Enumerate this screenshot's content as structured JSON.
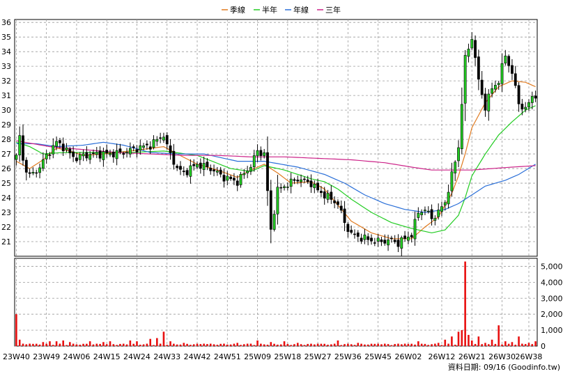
{
  "chart_data": {
    "type": "candlestick",
    "legend": {
      "placement": "top-center",
      "items": [
        {
          "name": "季線",
          "color": "#e07a1f"
        },
        {
          "name": "半年",
          "color": "#22cc22"
        },
        {
          "name": "年線",
          "color": "#2a6fd8"
        },
        {
          "name": "三年",
          "color": "#cc2288"
        }
      ]
    },
    "colors": {
      "up": "#22cc22",
      "down": "#000000",
      "volume": "#e81010",
      "grid": "#999999"
    },
    "grid": true,
    "price_axis": {
      "position": "left",
      "ylim": [
        20,
        36.2
      ],
      "ticks": [
        "21",
        "22",
        "23",
        "24",
        "25",
        "26",
        "27",
        "28",
        "29",
        "30",
        "31",
        "32",
        "33",
        "34",
        "35",
        "36"
      ]
    },
    "volume_axis": {
      "position": "right",
      "ylim": [
        0,
        5500
      ],
      "ticks": [
        "0",
        "1,000",
        "2,000",
        "3,000",
        "4,000",
        "5,000"
      ]
    },
    "x_labels": [
      "23W40",
      "23W49",
      "24W06",
      "24W15",
      "24W24",
      "24W33",
      "24W42",
      "24W51",
      "25W09",
      "25W18",
      "25W27",
      "25W36",
      "25W45",
      "26W02",
      "26W12",
      "26W21",
      "26W30",
      "26W38"
    ],
    "x_label_index": [
      0,
      9,
      18,
      27,
      36,
      45,
      54,
      63,
      72,
      81,
      90,
      99,
      108,
      117,
      127,
      136,
      145,
      153
    ],
    "price_anchors": [
      [
        0,
        26.8
      ],
      [
        1,
        28.2
      ],
      [
        2,
        26.5
      ],
      [
        4,
        25.5
      ],
      [
        6,
        25.8
      ],
      [
        8,
        26.5
      ],
      [
        10,
        27.2
      ],
      [
        12,
        27.8
      ],
      [
        14,
        27.5
      ],
      [
        16,
        27.0
      ],
      [
        18,
        26.7
      ],
      [
        20,
        26.9
      ],
      [
        24,
        27.0
      ],
      [
        28,
        27.0
      ],
      [
        32,
        27.1
      ],
      [
        36,
        27.4
      ],
      [
        40,
        27.6
      ],
      [
        44,
        28.3
      ],
      [
        45,
        27.5
      ],
      [
        48,
        26.0
      ],
      [
        50,
        25.7
      ],
      [
        54,
        26.3
      ],
      [
        58,
        26.0
      ],
      [
        62,
        25.4
      ],
      [
        66,
        25.1
      ],
      [
        70,
        26.2
      ],
      [
        72,
        27.2
      ],
      [
        74,
        27.0
      ],
      [
        76,
        21.8
      ],
      [
        78,
        24.5
      ],
      [
        80,
        24.8
      ],
      [
        84,
        25.3
      ],
      [
        88,
        25.0
      ],
      [
        90,
        24.5
      ],
      [
        92,
        24.2
      ],
      [
        96,
        23.6
      ],
      [
        98,
        22.3
      ],
      [
        100,
        21.5
      ],
      [
        104,
        21.2
      ],
      [
        108,
        21.0
      ],
      [
        112,
        21.1
      ],
      [
        114,
        20.9
      ],
      [
        116,
        21.2
      ],
      [
        118,
        21.5
      ],
      [
        120,
        23.0
      ],
      [
        122,
        23.2
      ],
      [
        124,
        22.6
      ],
      [
        126,
        23.0
      ],
      [
        128,
        23.7
      ],
      [
        130,
        25.5
      ],
      [
        132,
        27.5
      ],
      [
        134,
        33.5
      ],
      [
        136,
        35.0
      ],
      [
        138,
        32.0
      ],
      [
        140,
        30.2
      ],
      [
        142,
        31.5
      ],
      [
        144,
        32.0
      ],
      [
        146,
        33.8
      ],
      [
        148,
        32.5
      ],
      [
        150,
        30.5
      ],
      [
        152,
        30.0
      ],
      [
        154,
        31.0
      ],
      [
        155,
        31.0
      ]
    ],
    "volume_spikes": [
      [
        0,
        2000
      ],
      [
        1,
        400
      ],
      [
        4,
        150
      ],
      [
        8,
        250
      ],
      [
        10,
        300
      ],
      [
        12,
        300
      ],
      [
        14,
        350
      ],
      [
        16,
        250
      ],
      [
        22,
        300
      ],
      [
        26,
        250
      ],
      [
        28,
        300
      ],
      [
        34,
        350
      ],
      [
        36,
        300
      ],
      [
        40,
        450
      ],
      [
        42,
        500
      ],
      [
        44,
        900
      ],
      [
        46,
        300
      ],
      [
        50,
        200
      ],
      [
        56,
        150
      ],
      [
        62,
        150
      ],
      [
        66,
        200
      ],
      [
        70,
        150
      ],
      [
        72,
        350
      ],
      [
        76,
        250
      ],
      [
        80,
        300
      ],
      [
        84,
        200
      ],
      [
        90,
        150
      ],
      [
        96,
        350
      ],
      [
        102,
        200
      ],
      [
        108,
        150
      ],
      [
        116,
        150
      ],
      [
        120,
        300
      ],
      [
        126,
        200
      ],
      [
        128,
        400
      ],
      [
        130,
        600
      ],
      [
        132,
        900
      ],
      [
        133,
        1000
      ],
      [
        134,
        5300
      ],
      [
        135,
        700
      ],
      [
        136,
        350
      ],
      [
        138,
        600
      ],
      [
        140,
        200
      ],
      [
        142,
        400
      ],
      [
        144,
        1300
      ],
      [
        146,
        300
      ],
      [
        148,
        250
      ],
      [
        150,
        600
      ],
      [
        153,
        200
      ],
      [
        155,
        300
      ]
    ],
    "moving_averages": {
      "季線": [
        [
          0,
          26.5
        ],
        [
          4,
          26.0
        ],
        [
          8,
          26.6
        ],
        [
          12,
          27.4
        ],
        [
          16,
          27.2
        ],
        [
          20,
          26.9
        ],
        [
          26,
          27.0
        ],
        [
          34,
          27.2
        ],
        [
          44,
          27.5
        ],
        [
          48,
          27.0
        ],
        [
          54,
          26.3
        ],
        [
          60,
          25.9
        ],
        [
          66,
          25.4
        ],
        [
          70,
          25.9
        ],
        [
          74,
          26.3
        ],
        [
          78,
          25.7
        ],
        [
          82,
          25.0
        ],
        [
          88,
          25.1
        ],
        [
          92,
          24.6
        ],
        [
          96,
          23.5
        ],
        [
          100,
          22.4
        ],
        [
          106,
          21.6
        ],
        [
          112,
          21.2
        ],
        [
          118,
          21.2
        ],
        [
          122,
          22.0
        ],
        [
          126,
          22.7
        ],
        [
          130,
          24.3
        ],
        [
          132,
          25.5
        ],
        [
          134,
          27.0
        ],
        [
          136,
          28.8
        ],
        [
          140,
          30.5
        ],
        [
          144,
          31.6
        ],
        [
          148,
          32.0
        ],
        [
          152,
          31.9
        ],
        [
          155,
          31.6
        ]
      ],
      "半年": [
        [
          0,
          27.8
        ],
        [
          4,
          27.5
        ],
        [
          8,
          27.0
        ],
        [
          14,
          27.1
        ],
        [
          24,
          27.1
        ],
        [
          34,
          27.1
        ],
        [
          44,
          27.2
        ],
        [
          54,
          26.9
        ],
        [
          64,
          26.0
        ],
        [
          70,
          25.8
        ],
        [
          74,
          26.2
        ],
        [
          80,
          25.9
        ],
        [
          88,
          25.3
        ],
        [
          92,
          25.1
        ],
        [
          96,
          24.6
        ],
        [
          100,
          23.9
        ],
        [
          106,
          23.0
        ],
        [
          112,
          22.3
        ],
        [
          118,
          21.9
        ],
        [
          124,
          21.6
        ],
        [
          128,
          21.8
        ],
        [
          132,
          22.8
        ],
        [
          134,
          24.0
        ],
        [
          136,
          25.5
        ],
        [
          140,
          27.0
        ],
        [
          144,
          28.3
        ],
        [
          148,
          29.2
        ],
        [
          152,
          30.0
        ],
        [
          155,
          30.3
        ]
      ],
      "年線": [
        [
          0,
          27.7
        ],
        [
          6,
          27.7
        ],
        [
          12,
          27.5
        ],
        [
          20,
          27.6
        ],
        [
          26,
          27.8
        ],
        [
          32,
          27.6
        ],
        [
          40,
          27.1
        ],
        [
          48,
          27.0
        ],
        [
          56,
          27.0
        ],
        [
          66,
          26.5
        ],
        [
          74,
          26.5
        ],
        [
          84,
          26.1
        ],
        [
          92,
          25.6
        ],
        [
          98,
          25.0
        ],
        [
          104,
          24.2
        ],
        [
          110,
          23.6
        ],
        [
          116,
          23.2
        ],
        [
          122,
          23.0
        ],
        [
          128,
          23.2
        ],
        [
          132,
          23.6
        ],
        [
          136,
          24.2
        ],
        [
          140,
          24.8
        ],
        [
          146,
          25.2
        ],
        [
          150,
          25.6
        ],
        [
          155,
          26.3
        ]
      ],
      "三年": [
        [
          0,
          27.9
        ],
        [
          10,
          27.5
        ],
        [
          20,
          27.3
        ],
        [
          30,
          27.1
        ],
        [
          40,
          27.0
        ],
        [
          50,
          26.9
        ],
        [
          60,
          26.9
        ],
        [
          70,
          26.8
        ],
        [
          80,
          26.8
        ],
        [
          90,
          26.7
        ],
        [
          100,
          26.6
        ],
        [
          110,
          26.4
        ],
        [
          118,
          26.1
        ],
        [
          124,
          25.9
        ],
        [
          130,
          25.9
        ],
        [
          136,
          25.9
        ],
        [
          142,
          26.0
        ],
        [
          148,
          26.1
        ],
        [
          155,
          26.2
        ]
      ]
    },
    "footer": "資料日期: 09/16 (Goodinfo.tw)"
  }
}
